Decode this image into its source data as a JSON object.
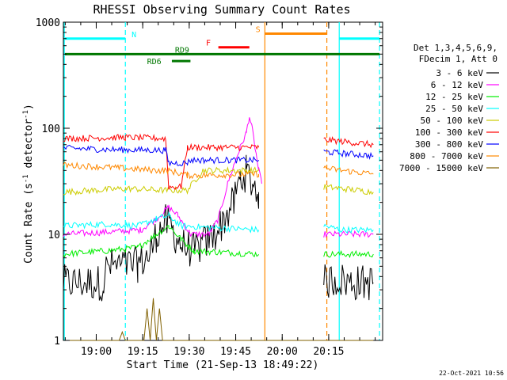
{
  "chart_data": {
    "type": "line",
    "title": "RHESSI Observing Summary Count Rates",
    "xlabel": "Start Time (21-Sep-13 18:49:22)",
    "ylabel_main": "Count Rate (s",
    "ylabel_sup1": "-1",
    "ylabel_mid": " detector",
    "ylabel_sup2": "-1",
    "ylabel_end": ")",
    "x_unit": "minutes since 18:49:22",
    "xlim": [
      0,
      103
    ],
    "ylim": [
      1,
      1000
    ],
    "yscale": "log",
    "xticks": [
      {
        "value": 10.6,
        "label": "19:00"
      },
      {
        "value": 25.6,
        "label": "19:15"
      },
      {
        "value": 40.6,
        "label": "19:30"
      },
      {
        "value": 55.6,
        "label": "19:45"
      },
      {
        "value": 70.6,
        "label": "20:00"
      },
      {
        "value": 85.6,
        "label": "20:15"
      }
    ],
    "yticks": [
      {
        "value": 1,
        "label": "1"
      },
      {
        "value": 10,
        "label": "10"
      },
      {
        "value": 100,
        "label": "100"
      },
      {
        "value": 1000,
        "label": "1000"
      }
    ],
    "legend_header": [
      "Det 1,3,4,5,6,9,",
      "FDecim 1, Att 0"
    ],
    "legend_position": "right",
    "series": [
      {
        "name": "3 - 6 keV",
        "color": "#000000",
        "points": [
          [
            0,
            3.5
          ],
          [
            6,
            3.5
          ],
          [
            10,
            3.5
          ],
          [
            13,
            3.5
          ],
          [
            14,
            5.0
          ],
          [
            24,
            5.2
          ],
          [
            28,
            6.5
          ],
          [
            30,
            10
          ],
          [
            33,
            13
          ],
          [
            35,
            11
          ],
          [
            38,
            8
          ],
          [
            42,
            7
          ],
          [
            45,
            8
          ],
          [
            49,
            10
          ],
          [
            52,
            14
          ],
          [
            55,
            20
          ],
          [
            57,
            33
          ],
          [
            59,
            38
          ],
          [
            61,
            30
          ],
          [
            63,
            25
          ],
          [
            83,
            null
          ],
          [
            84,
            3.5
          ],
          [
            88,
            3.8
          ],
          [
            93,
            3.5
          ],
          [
            97,
            3.5
          ],
          [
            100,
            3.5
          ]
        ]
      },
      {
        "name": "6 - 12 keV",
        "color": "#ff00ff",
        "points": [
          [
            0,
            10
          ],
          [
            14,
            10.5
          ],
          [
            25,
            11
          ],
          [
            30,
            14
          ],
          [
            34,
            18
          ],
          [
            37,
            15
          ],
          [
            41,
            10
          ],
          [
            47,
            10
          ],
          [
            50,
            14
          ],
          [
            53,
            30
          ],
          [
            55,
            45
          ],
          [
            57,
            65
          ],
          [
            59,
            90
          ],
          [
            60,
            130
          ],
          [
            61,
            95
          ],
          [
            63,
            40
          ],
          [
            64,
            30
          ],
          [
            83,
            null
          ],
          [
            84,
            10
          ],
          [
            90,
            10
          ],
          [
            100,
            10
          ]
        ]
      },
      {
        "name": "12 - 25 keV",
        "color": "#00ee00",
        "points": [
          [
            0,
            6.5
          ],
          [
            14,
            7
          ],
          [
            24,
            7.5
          ],
          [
            30,
            10
          ],
          [
            34,
            12
          ],
          [
            38,
            9
          ],
          [
            42,
            7
          ],
          [
            63,
            6.5
          ],
          [
            83,
            null
          ],
          [
            84,
            6.5
          ],
          [
            90,
            6.5
          ],
          [
            100,
            6.5
          ]
        ]
      },
      {
        "name": "25 - 50 keV",
        "color": "#00ffff",
        "points": [
          [
            0,
            12
          ],
          [
            14,
            12.5
          ],
          [
            24,
            12
          ],
          [
            30,
            14
          ],
          [
            34,
            15
          ],
          [
            38,
            12
          ],
          [
            63,
            11
          ],
          [
            83,
            null
          ],
          [
            84,
            12
          ],
          [
            90,
            11
          ],
          [
            100,
            11
          ]
        ]
      },
      {
        "name": "50 - 100 keV",
        "color": "#cccc00",
        "points": [
          [
            0,
            25
          ],
          [
            20,
            27
          ],
          [
            33,
            26
          ],
          [
            40,
            26
          ],
          [
            45,
            40
          ],
          [
            63,
            40
          ],
          [
            83,
            null
          ],
          [
            84,
            28
          ],
          [
            90,
            27
          ],
          [
            100,
            25
          ]
        ]
      },
      {
        "name": "100 - 300 keV",
        "color": "#ff0000",
        "points": [
          [
            0,
            80
          ],
          [
            20,
            82
          ],
          [
            33,
            80
          ],
          [
            34,
            28
          ],
          [
            38,
            28
          ],
          [
            40,
            66
          ],
          [
            63,
            66
          ],
          [
            83,
            null
          ],
          [
            84,
            78
          ],
          [
            90,
            75
          ],
          [
            100,
            70
          ]
        ]
      },
      {
        "name": "300 - 800 keV",
        "color": "#0000ff",
        "points": [
          [
            0,
            65
          ],
          [
            14,
            63
          ],
          [
            33,
            62
          ],
          [
            34,
            47
          ],
          [
            40,
            47
          ],
          [
            41,
            50
          ],
          [
            63,
            50
          ],
          [
            83,
            null
          ],
          [
            84,
            60
          ],
          [
            90,
            58
          ],
          [
            100,
            55
          ]
        ]
      },
      {
        "name": "800 - 7000 keV",
        "color": "#ff8800",
        "points": [
          [
            0,
            45
          ],
          [
            14,
            43
          ],
          [
            30,
            40
          ],
          [
            34,
            40
          ],
          [
            40,
            36
          ],
          [
            45,
            36
          ],
          [
            63,
            37
          ],
          [
            83,
            null
          ],
          [
            84,
            42
          ],
          [
            90,
            40
          ],
          [
            100,
            37
          ]
        ]
      },
      {
        "name": "7000 - 15000 keV",
        "color": "#806000",
        "points": [
          [
            0,
            1
          ],
          [
            18,
            1
          ],
          [
            19,
            1.2
          ],
          [
            20,
            1
          ],
          [
            26,
            1
          ],
          [
            27,
            2.0
          ],
          [
            28,
            1
          ],
          [
            29,
            2.5
          ],
          [
            30,
            1
          ],
          [
            31,
            2.0
          ],
          [
            32,
            1
          ],
          [
            42,
            1
          ],
          [
            100,
            1
          ]
        ]
      }
    ],
    "vertical_lines": [
      {
        "x": 0.3,
        "color": "#00ffff",
        "style": "solid"
      },
      {
        "x": 20,
        "color": "#00ffff",
        "style": "dashed"
      },
      {
        "x": 65,
        "color": "#ff8800",
        "style": "solid"
      },
      {
        "x": 85,
        "color": "#ff8800",
        "style": "dashed"
      },
      {
        "x": 89,
        "color": "#00ffff",
        "style": "solid"
      },
      {
        "x": 102,
        "color": "#00ffff",
        "style": "dashed"
      }
    ],
    "status_bars": [
      {
        "label": "N",
        "color": "#00ffff",
        "segments": [
          [
            0.5,
            20
          ],
          [
            89,
            102
          ]
        ],
        "level": 700,
        "label_x": 22
      },
      {
        "label": "S",
        "color": "#ff8800",
        "segments": [
          [
            65,
            85
          ]
        ],
        "level": 780,
        "label_x": 62
      },
      {
        "label": "F",
        "color": "#ff0000",
        "segments": [
          [
            50,
            60
          ]
        ],
        "level": 580,
        "label_x": 46
      },
      {
        "label": "RD9",
        "color": "#007700",
        "segments": [
          [
            0.5,
            102
          ]
        ],
        "level": 500,
        "label_x": 36
      },
      {
        "label": "RD6",
        "color": "#007700",
        "segments": [
          [
            35,
            41
          ]
        ],
        "level": 430,
        "label_x": 27
      }
    ]
  },
  "footer": {
    "date": "22-Oct-2021 10:56"
  }
}
